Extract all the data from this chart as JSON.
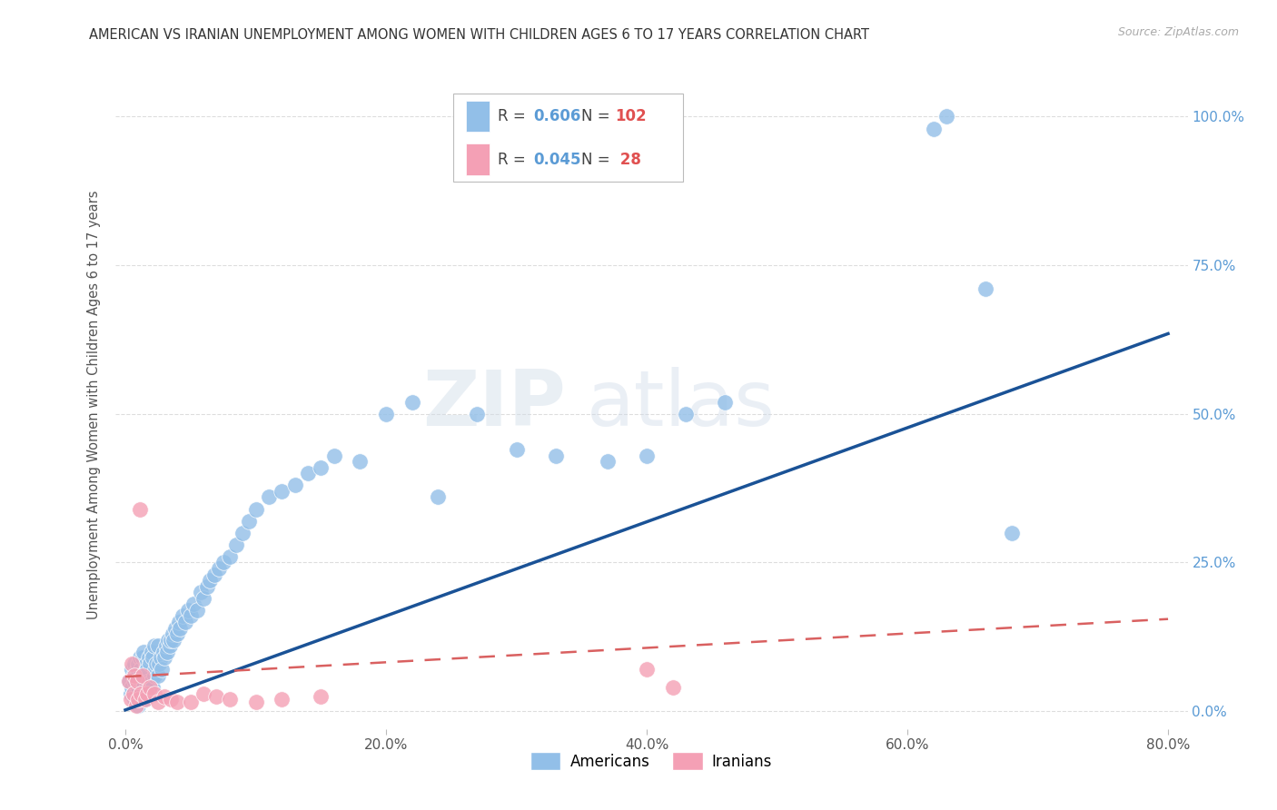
{
  "title": "AMERICAN VS IRANIAN UNEMPLOYMENT AMONG WOMEN WITH CHILDREN AGES 6 TO 17 YEARS CORRELATION CHART",
  "source": "Source: ZipAtlas.com",
  "xlabel_ticks": [
    "0.0%",
    "20.0%",
    "40.0%",
    "60.0%",
    "80.0%"
  ],
  "xlabel_tick_vals": [
    0.0,
    0.2,
    0.4,
    0.6,
    0.8
  ],
  "ylabel_ticks": [
    "0.0%",
    "25.0%",
    "50.0%",
    "75.0%",
    "100.0%"
  ],
  "ylabel_tick_vals": [
    0.0,
    0.25,
    0.5,
    0.75,
    1.0
  ],
  "ylabel_label": "Unemployment Among Women with Children Ages 6 to 17 years",
  "legend_american": "Americans",
  "legend_iranian": "Iranians",
  "R_american": "0.606",
  "N_american": "102",
  "R_iranian": "0.045",
  "N_iranian": " 28",
  "american_color": "#92bfe8",
  "iranian_color": "#f4a0b5",
  "american_line_color": "#1a5296",
  "iranian_line_color": "#d96060",
  "legend_R_color": "#5b9bd5",
  "legend_N_color": "#e05050",
  "background_color": "#ffffff",
  "watermark_zip_color": "#d0dce8",
  "watermark_atlas_color": "#ccd8e8",
  "am_line_x0": 0.0,
  "am_line_y0": 0.002,
  "am_line_x1": 0.8,
  "am_line_y1": 0.635,
  "ir_line_x0": 0.0,
  "ir_line_y0": 0.058,
  "ir_line_x1": 0.8,
  "ir_line_y1": 0.155,
  "american_x": [
    0.003,
    0.004,
    0.005,
    0.005,
    0.006,
    0.006,
    0.007,
    0.007,
    0.007,
    0.008,
    0.008,
    0.009,
    0.009,
    0.01,
    0.01,
    0.01,
    0.011,
    0.011,
    0.011,
    0.012,
    0.012,
    0.013,
    0.013,
    0.013,
    0.014,
    0.014,
    0.014,
    0.015,
    0.015,
    0.016,
    0.016,
    0.017,
    0.017,
    0.018,
    0.018,
    0.019,
    0.019,
    0.02,
    0.02,
    0.021,
    0.021,
    0.022,
    0.022,
    0.023,
    0.024,
    0.025,
    0.025,
    0.026,
    0.027,
    0.028,
    0.029,
    0.03,
    0.031,
    0.032,
    0.033,
    0.034,
    0.035,
    0.036,
    0.037,
    0.038,
    0.04,
    0.041,
    0.042,
    0.044,
    0.046,
    0.048,
    0.05,
    0.052,
    0.055,
    0.058,
    0.06,
    0.063,
    0.065,
    0.068,
    0.072,
    0.075,
    0.08,
    0.085,
    0.09,
    0.095,
    0.1,
    0.11,
    0.12,
    0.13,
    0.14,
    0.15,
    0.16,
    0.18,
    0.2,
    0.22,
    0.24,
    0.27,
    0.3,
    0.33,
    0.37,
    0.4,
    0.43,
    0.46,
    0.62,
    0.63,
    0.66,
    0.68
  ],
  "american_y": [
    0.05,
    0.03,
    0.04,
    0.07,
    0.03,
    0.06,
    0.02,
    0.05,
    0.08,
    0.03,
    0.06,
    0.02,
    0.07,
    0.01,
    0.04,
    0.08,
    0.02,
    0.05,
    0.09,
    0.03,
    0.07,
    0.02,
    0.05,
    0.09,
    0.03,
    0.06,
    0.1,
    0.02,
    0.07,
    0.04,
    0.08,
    0.03,
    0.07,
    0.05,
    0.09,
    0.04,
    0.08,
    0.05,
    0.1,
    0.04,
    0.09,
    0.06,
    0.11,
    0.07,
    0.08,
    0.06,
    0.11,
    0.08,
    0.09,
    0.07,
    0.1,
    0.09,
    0.11,
    0.1,
    0.12,
    0.11,
    0.12,
    0.13,
    0.12,
    0.14,
    0.13,
    0.15,
    0.14,
    0.16,
    0.15,
    0.17,
    0.16,
    0.18,
    0.17,
    0.2,
    0.19,
    0.21,
    0.22,
    0.23,
    0.24,
    0.25,
    0.26,
    0.28,
    0.3,
    0.32,
    0.34,
    0.36,
    0.37,
    0.38,
    0.4,
    0.41,
    0.43,
    0.42,
    0.5,
    0.52,
    0.36,
    0.5,
    0.44,
    0.43,
    0.42,
    0.43,
    0.5,
    0.52,
    0.98,
    1.0,
    0.71,
    0.3
  ],
  "iranian_x": [
    0.003,
    0.004,
    0.005,
    0.006,
    0.007,
    0.008,
    0.009,
    0.01,
    0.011,
    0.012,
    0.013,
    0.015,
    0.017,
    0.019,
    0.022,
    0.025,
    0.03,
    0.035,
    0.04,
    0.05,
    0.06,
    0.07,
    0.08,
    0.1,
    0.12,
    0.15,
    0.4,
    0.42
  ],
  "iranian_y": [
    0.05,
    0.02,
    0.08,
    0.03,
    0.06,
    0.01,
    0.05,
    0.02,
    0.34,
    0.03,
    0.06,
    0.02,
    0.03,
    0.04,
    0.03,
    0.015,
    0.025,
    0.02,
    0.015,
    0.015,
    0.03,
    0.025,
    0.02,
    0.015,
    0.02,
    0.025,
    0.07,
    0.04
  ]
}
